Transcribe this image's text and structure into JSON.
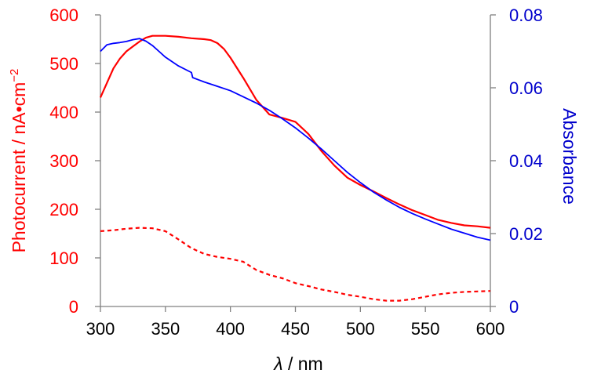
{
  "chart_data": {
    "type": "line",
    "xlabel_symbol": "λ",
    "xlabel_unit": " / nm",
    "ylabel_left": "Photocurrent / nA•cm",
    "ylabel_left_sup": "−2",
    "ylabel_right": "Absorbance",
    "xlim": [
      300,
      600
    ],
    "ylim_left": [
      0,
      600
    ],
    "ylim_right": [
      0,
      0.08
    ],
    "x_ticks": [
      "300",
      "350",
      "400",
      "450",
      "500",
      "550",
      "600"
    ],
    "y_left_ticks": [
      "0",
      "100",
      "200",
      "300",
      "400",
      "500",
      "600"
    ],
    "y_right_ticks": [
      "0",
      "0.02",
      "0.04",
      "0.06",
      "0.08"
    ],
    "colors": {
      "left": "#ff0000",
      "right": "#0000cc",
      "photocurrent": "#ff0000",
      "absorbance": "#0000ff",
      "axis": "#000000"
    },
    "series": [
      {
        "axis": "left",
        "style": "solid",
        "x": [
          300,
          305,
          310,
          315,
          320,
          325,
          330,
          335,
          340,
          350,
          360,
          370,
          380,
          385,
          390,
          395,
          400,
          410,
          420,
          430,
          440,
          450,
          460,
          470,
          480,
          490,
          500,
          510,
          520,
          530,
          540,
          550,
          560,
          570,
          580,
          590,
          600
        ],
        "y": [
          430,
          460,
          490,
          510,
          525,
          535,
          545,
          553,
          557,
          557,
          555,
          552,
          550,
          548,
          542,
          530,
          512,
          470,
          425,
          395,
          388,
          380,
          355,
          320,
          290,
          265,
          250,
          237,
          223,
          210,
          198,
          188,
          178,
          172,
          167,
          165,
          162
        ]
      },
      {
        "axis": "left",
        "style": "dashed",
        "x": [
          300,
          310,
          320,
          330,
          340,
          350,
          360,
          370,
          380,
          390,
          400,
          410,
          420,
          430,
          440,
          450,
          460,
          470,
          480,
          490,
          500,
          510,
          520,
          530,
          540,
          550,
          560,
          570,
          580,
          590,
          600
        ],
        "y": [
          155,
          157,
          160,
          162,
          161,
          155,
          138,
          120,
          108,
          102,
          98,
          92,
          75,
          65,
          58,
          48,
          42,
          35,
          30,
          24,
          20,
          15,
          12,
          12,
          15,
          20,
          25,
          28,
          30,
          31,
          32
        ]
      },
      {
        "axis": "right",
        "style": "solid",
        "x": [
          300,
          305,
          310,
          315,
          320,
          325,
          330,
          335,
          340,
          345,
          350,
          360,
          370,
          371,
          380,
          390,
          400,
          410,
          420,
          430,
          440,
          450,
          460,
          470,
          480,
          490,
          500,
          510,
          520,
          530,
          540,
          550,
          560,
          570,
          580,
          590,
          600
        ],
        "y": [
          0.07,
          0.0718,
          0.0722,
          0.0724,
          0.0727,
          0.0732,
          0.0735,
          0.0728,
          0.0716,
          0.07,
          0.0684,
          0.066,
          0.0642,
          0.0628,
          0.0616,
          0.0604,
          0.0592,
          0.0575,
          0.0558,
          0.0538,
          0.0515,
          0.049,
          0.0462,
          0.0432,
          0.04,
          0.0368,
          0.034,
          0.0314,
          0.0292,
          0.0272,
          0.0255,
          0.024,
          0.0226,
          0.0212,
          0.0201,
          0.019,
          0.0182
        ]
      }
    ]
  }
}
